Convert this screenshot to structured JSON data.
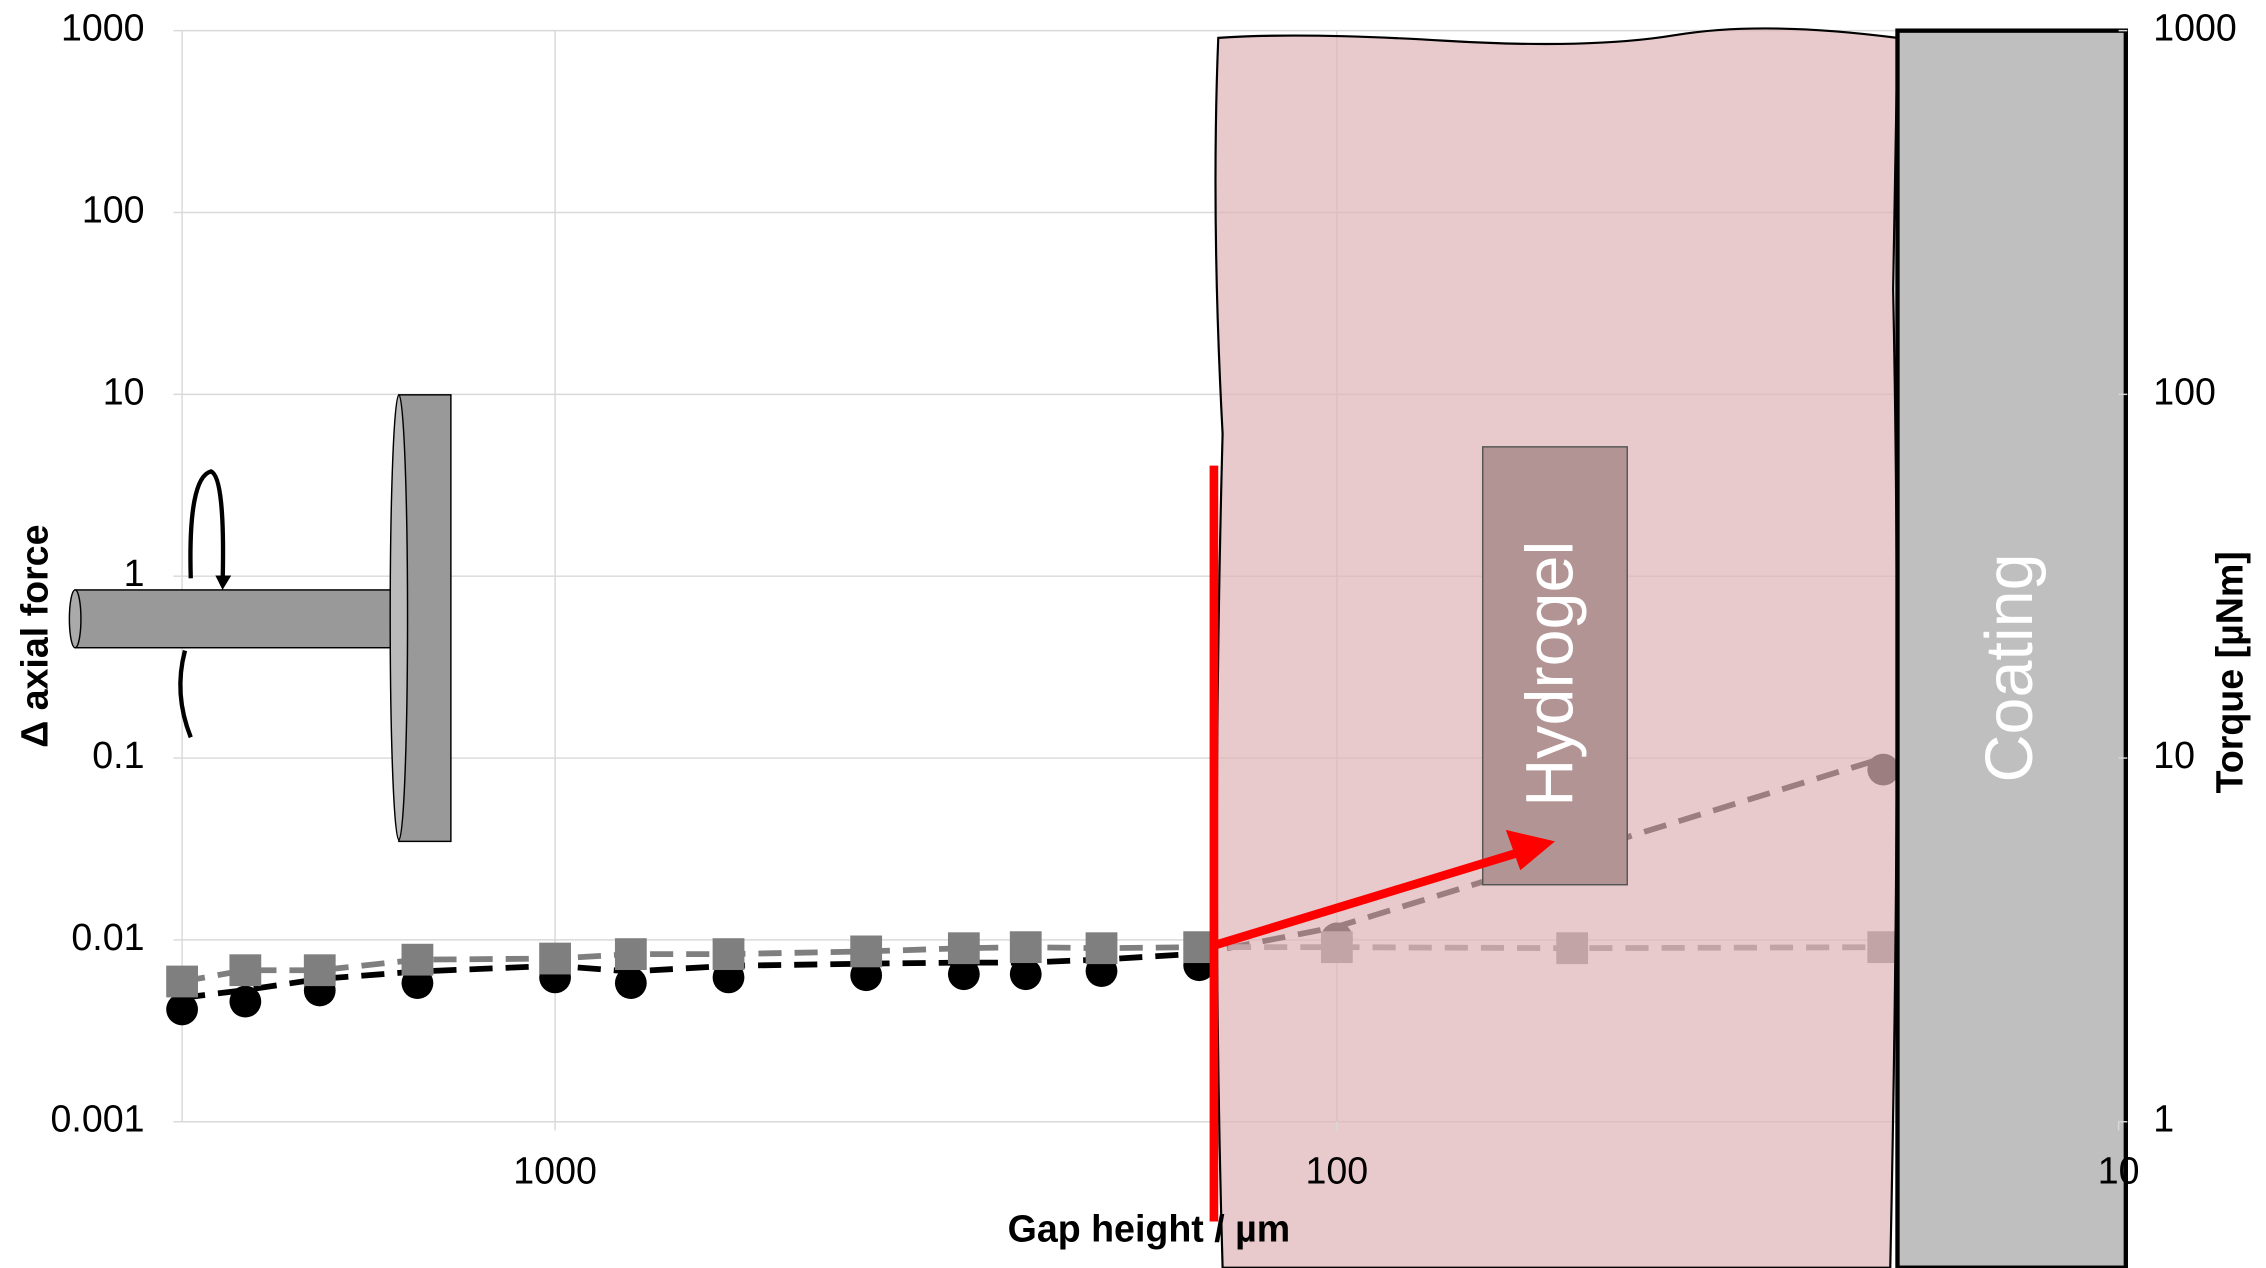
{
  "chart_data": {
    "type": "scatter",
    "x_label": "Gap height / µm",
    "y_label": "Δ axial force",
    "y2_label": "Torque [µNm]",
    "annotations": [
      "Hydrogel",
      "Coating"
    ],
    "log_x": true,
    "log_y": true,
    "grid": true,
    "xlim": [
      3000,
      10
    ],
    "xticks": [
      1000,
      100,
      10
    ],
    "ylim": [
      0.001,
      1000
    ],
    "yticks": [
      0.001,
      0.01,
      0.1,
      1,
      10,
      100,
      1000
    ],
    "y2lim": [
      1,
      1000
    ],
    "y2ticks": [
      1,
      10,
      100,
      1000
    ],
    "series": [
      {
        "marker": "circle",
        "color": "#000000",
        "x": [
          3000,
          2490,
          2000,
          1500,
          1000,
          800,
          600,
          400,
          300,
          250,
          200,
          150,
          100,
          20
        ],
        "values": [
          0.0048,
          0.0053,
          0.0061,
          0.0067,
          0.0072,
          0.0067,
          0.0072,
          0.0074,
          0.0075,
          0.0075,
          0.0078,
          0.0084,
          0.0118,
          0.1
        ]
      },
      {
        "marker": "square",
        "color": "#7f7f7f",
        "axis": "y2",
        "x": [
          3000,
          2490,
          2000,
          1500,
          1000,
          800,
          600,
          400,
          300,
          250,
          200,
          150,
          100,
          50,
          20
        ],
        "values": [
          2.43,
          2.61,
          2.61,
          2.79,
          2.81,
          2.89,
          2.89,
          2.94,
          3.0,
          3.02,
          3.0,
          3.02,
          3.02,
          3.0,
          3.02
        ]
      }
    ]
  }
}
